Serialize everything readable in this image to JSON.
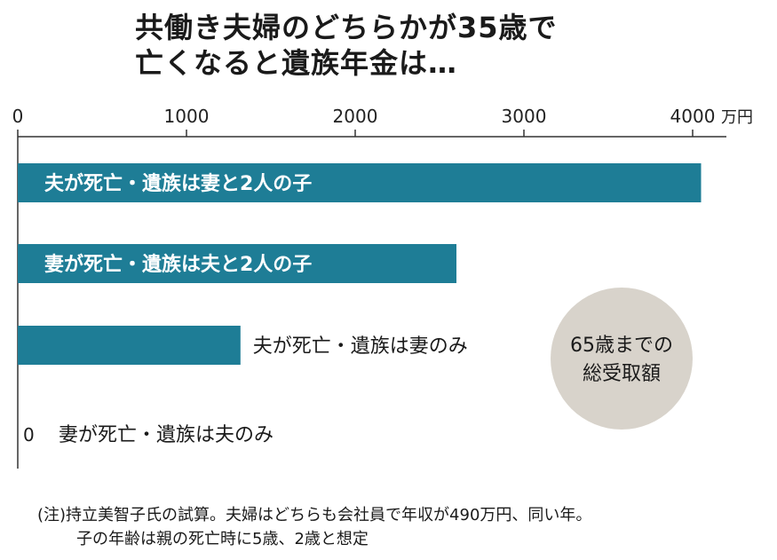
{
  "title_line1": "共働き夫婦のどちらかが35歳で",
  "title_line2": "亡くなると遺族年金は…",
  "chart_data": {
    "type": "bar",
    "orientation": "horizontal",
    "unit": "万円",
    "xlim": [
      0,
      4000
    ],
    "ticks": [
      0,
      1000,
      2000,
      3000,
      4000
    ],
    "tick_labels": [
      "0",
      "1000",
      "2000",
      "3000",
      "4000"
    ],
    "categories": [
      "夫が死亡・遺族は妻と2人の子",
      "妻が死亡・遺族は夫と2人の子",
      "夫が死亡・遺族は妻のみ",
      "妻が死亡・遺族は夫のみ"
    ],
    "values": [
      4050,
      2600,
      1320,
      0
    ],
    "zero_value_label": "0",
    "bar_color": "#1e7d96",
    "legend_circle_line1": "65歳までの",
    "legend_circle_line2": "総受取額",
    "legend_circle_color": "#d8d3cb"
  },
  "note_line1": "(注)持立美智子氏の試算。夫婦はどちらも会社員で年収が490万円、同い年。",
  "note_line2": "子の年齢は親の死亡時に5歳、2歳と想定"
}
